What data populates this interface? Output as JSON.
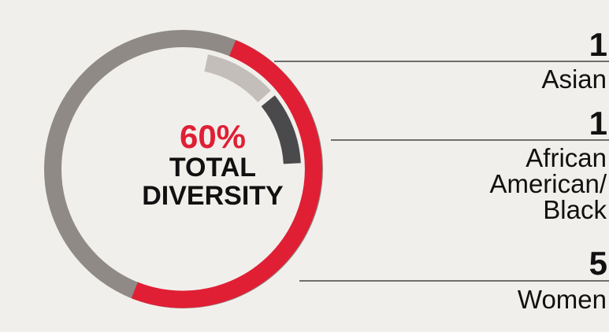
{
  "chart_data": {
    "type": "donut",
    "center_value": {
      "value": 60,
      "label": "60%"
    },
    "center_text": "TOTAL DIVERSITY",
    "thetalim": [
      0,
      10
    ],
    "series": [
      {
        "name": "Asian",
        "value": 1,
        "color": "#c3beba",
        "ring": "inner"
      },
      {
        "name": "African American/ Black",
        "value": 1,
        "color": "#4a4a4c",
        "ring": "inner"
      },
      {
        "name": "Women",
        "value": 5,
        "color": "#e01f35",
        "ring": "outer"
      }
    ]
  }
}
